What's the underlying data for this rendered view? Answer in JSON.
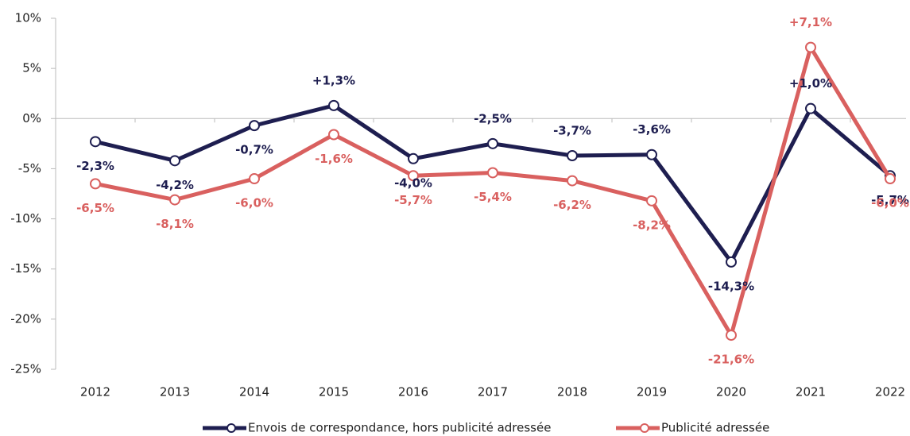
{
  "chart_data": {
    "type": "line",
    "categories": [
      "2012",
      "2013",
      "2014",
      "2015",
      "2016",
      "2017",
      "2018",
      "2019",
      "2020",
      "2021",
      "2022"
    ],
    "series": [
      {
        "name": "Envois de correspondance, hors publicité adressée",
        "color": "#1e1e50",
        "values": [
          -2.3,
          -4.2,
          -0.7,
          1.3,
          -4.0,
          -2.5,
          -3.7,
          -3.6,
          -14.3,
          1.0,
          -5.7
        ],
        "value_labels": [
          "-2,3%",
          "-4,2%",
          "-0,7%",
          "+1,3%",
          "-4,0%",
          "-2,5%",
          "-3,7%",
          "-3,6%",
          "-14,3%",
          "+1,0%",
          "-5,7%"
        ]
      },
      {
        "name": "Publicité adressée",
        "color": "#d9605f",
        "values": [
          -6.5,
          -8.1,
          -6.0,
          -1.6,
          -5.7,
          -5.4,
          -6.2,
          -8.2,
          -21.6,
          7.1,
          -6.0
        ],
        "value_labels": [
          "-6,5%",
          "-8,1%",
          "-6,0%",
          "-1,6%",
          "-5,7%",
          "-5,4%",
          "-6,2%",
          "-8,2%",
          "-21,6%",
          "+7,1%",
          "-6,0%"
        ]
      }
    ],
    "ylim": [
      -25,
      10
    ],
    "yticks": [
      {
        "value": -25,
        "label": "-25%"
      },
      {
        "value": -20,
        "label": "-20%"
      },
      {
        "value": -15,
        "label": "-15%"
      },
      {
        "value": -10,
        "label": "-10%"
      },
      {
        "value": -5,
        "label": "-5%"
      },
      {
        "value": 0,
        "label": "0%"
      },
      {
        "value": 5,
        "label": "5%"
      },
      {
        "value": 10,
        "label": "10%"
      }
    ],
    "legend": "bottom"
  }
}
